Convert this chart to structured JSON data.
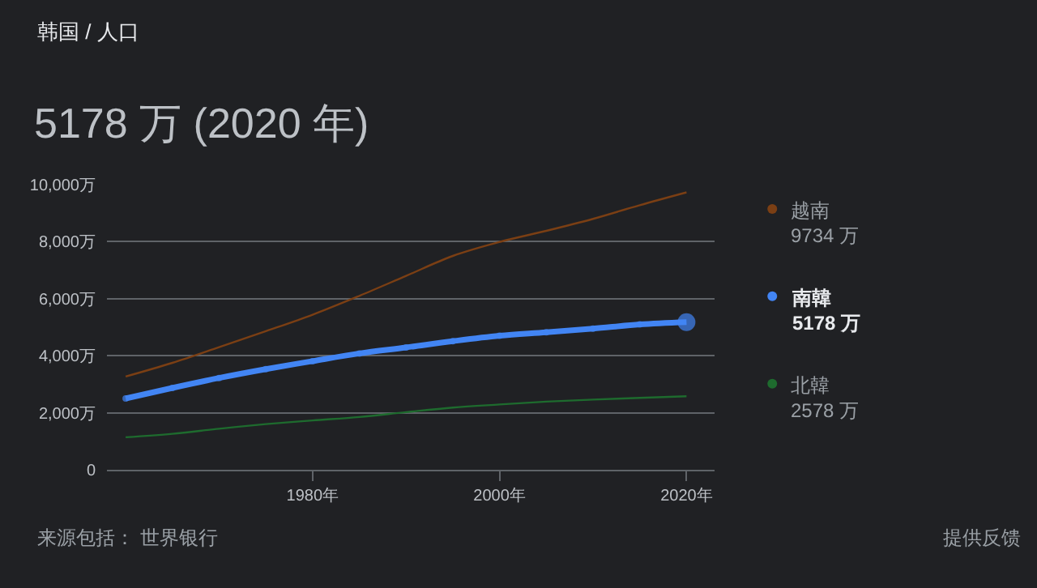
{
  "chart_data": {
    "type": "line",
    "subtitle": "韩国 / 人口",
    "title": "5178 万 (2020 年)",
    "x": [
      1960,
      1965,
      1970,
      1975,
      1980,
      1985,
      1990,
      1995,
      2000,
      2005,
      2010,
      2015,
      2020
    ],
    "series": [
      {
        "name": "越南",
        "color": "#7b3f14",
        "values": [
          3270,
          3750,
          4300,
          4860,
          5440,
          6100,
          6800,
          7500,
          7990,
          8380,
          8800,
          9280,
          9730
        ]
      },
      {
        "name": "南韓",
        "color": "#4285f4",
        "marker": "circle",
        "values": [
          2500,
          2870,
          3220,
          3530,
          3810,
          4080,
          4290,
          4510,
          4700,
          4820,
          4950,
          5100,
          5180
        ]
      },
      {
        "name": "北韓",
        "color": "#1e6b2e",
        "values": [
          1140,
          1260,
          1440,
          1600,
          1730,
          1850,
          2020,
          2180,
          2290,
          2390,
          2460,
          2520,
          2580
        ]
      }
    ],
    "xlim": [
      1958,
      2023
    ],
    "xticks": [
      {
        "value": 1980,
        "label": "1980年"
      },
      {
        "value": 2000,
        "label": "2000年"
      },
      {
        "value": 2020,
        "label": "2020年"
      }
    ],
    "ylim": [
      0,
      10000
    ],
    "yticks": [
      0,
      {
        "value": 2000,
        "label": "2,000万"
      },
      {
        "value": 4000,
        "label": "4,000万"
      },
      {
        "value": 6000,
        "label": "6,000万"
      },
      {
        "value": 8000,
        "label": "8,000万"
      },
      {
        "value": 10000,
        "label": "10,000万"
      }
    ],
    "grid": "y",
    "legend": "right",
    "marker": "none",
    "line_style": "solid",
    "annotations": [
      "9734 万",
      "5178 万",
      "2578 万",
      "来源包括： 世界银行",
      "提供反馈"
    ]
  }
}
